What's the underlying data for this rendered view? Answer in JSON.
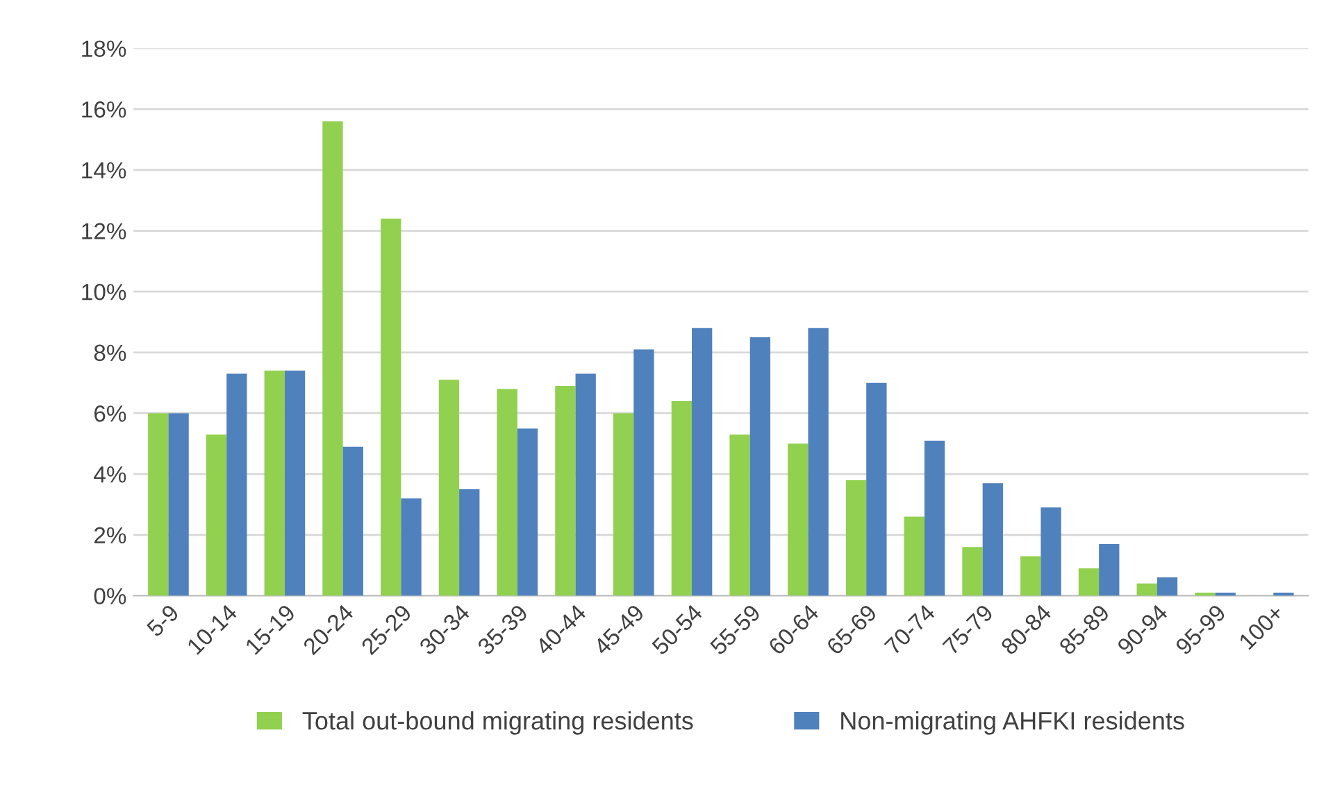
{
  "chart_data": {
    "type": "bar",
    "categories": [
      "5-9",
      "10-14",
      "15-19",
      "20-24",
      "25-29",
      "30-34",
      "35-39",
      "40-44",
      "45-49",
      "50-54",
      "55-59",
      "60-64",
      "65-69",
      "70-74",
      "75-79",
      "80-84",
      "85-89",
      "90-94",
      "95-99",
      "100+"
    ],
    "series": [
      {
        "name": "Total out-bound migrating residents",
        "color": "#92d050",
        "values": [
          6.0,
          5.3,
          7.4,
          15.6,
          12.4,
          7.1,
          6.8,
          6.9,
          6.0,
          6.4,
          5.3,
          5.0,
          3.8,
          2.6,
          1.6,
          1.3,
          0.9,
          0.4,
          0.1,
          0.0
        ]
      },
      {
        "name": "Non-migrating AHFKI residents",
        "color": "#4f81bd",
        "values": [
          6.0,
          7.3,
          7.4,
          4.9,
          3.2,
          3.5,
          5.5,
          7.3,
          8.1,
          8.8,
          8.5,
          8.8,
          7.0,
          5.1,
          3.7,
          2.9,
          1.7,
          0.6,
          0.1,
          0.1
        ]
      }
    ],
    "ylim": [
      0,
      18
    ],
    "yticks": [
      {
        "value": 0,
        "label": "0%"
      },
      {
        "value": 2,
        "label": "2%"
      },
      {
        "value": 4,
        "label": "4%"
      },
      {
        "value": 6,
        "label": "6%"
      },
      {
        "value": 8,
        "label": "8%"
      },
      {
        "value": 10,
        "label": "10%"
      },
      {
        "value": 12,
        "label": "12%"
      },
      {
        "value": 14,
        "label": "14%"
      },
      {
        "value": 16,
        "label": "16%"
      },
      {
        "value": 18,
        "label": "18%"
      }
    ],
    "grid": "y",
    "legend": "bottom"
  }
}
